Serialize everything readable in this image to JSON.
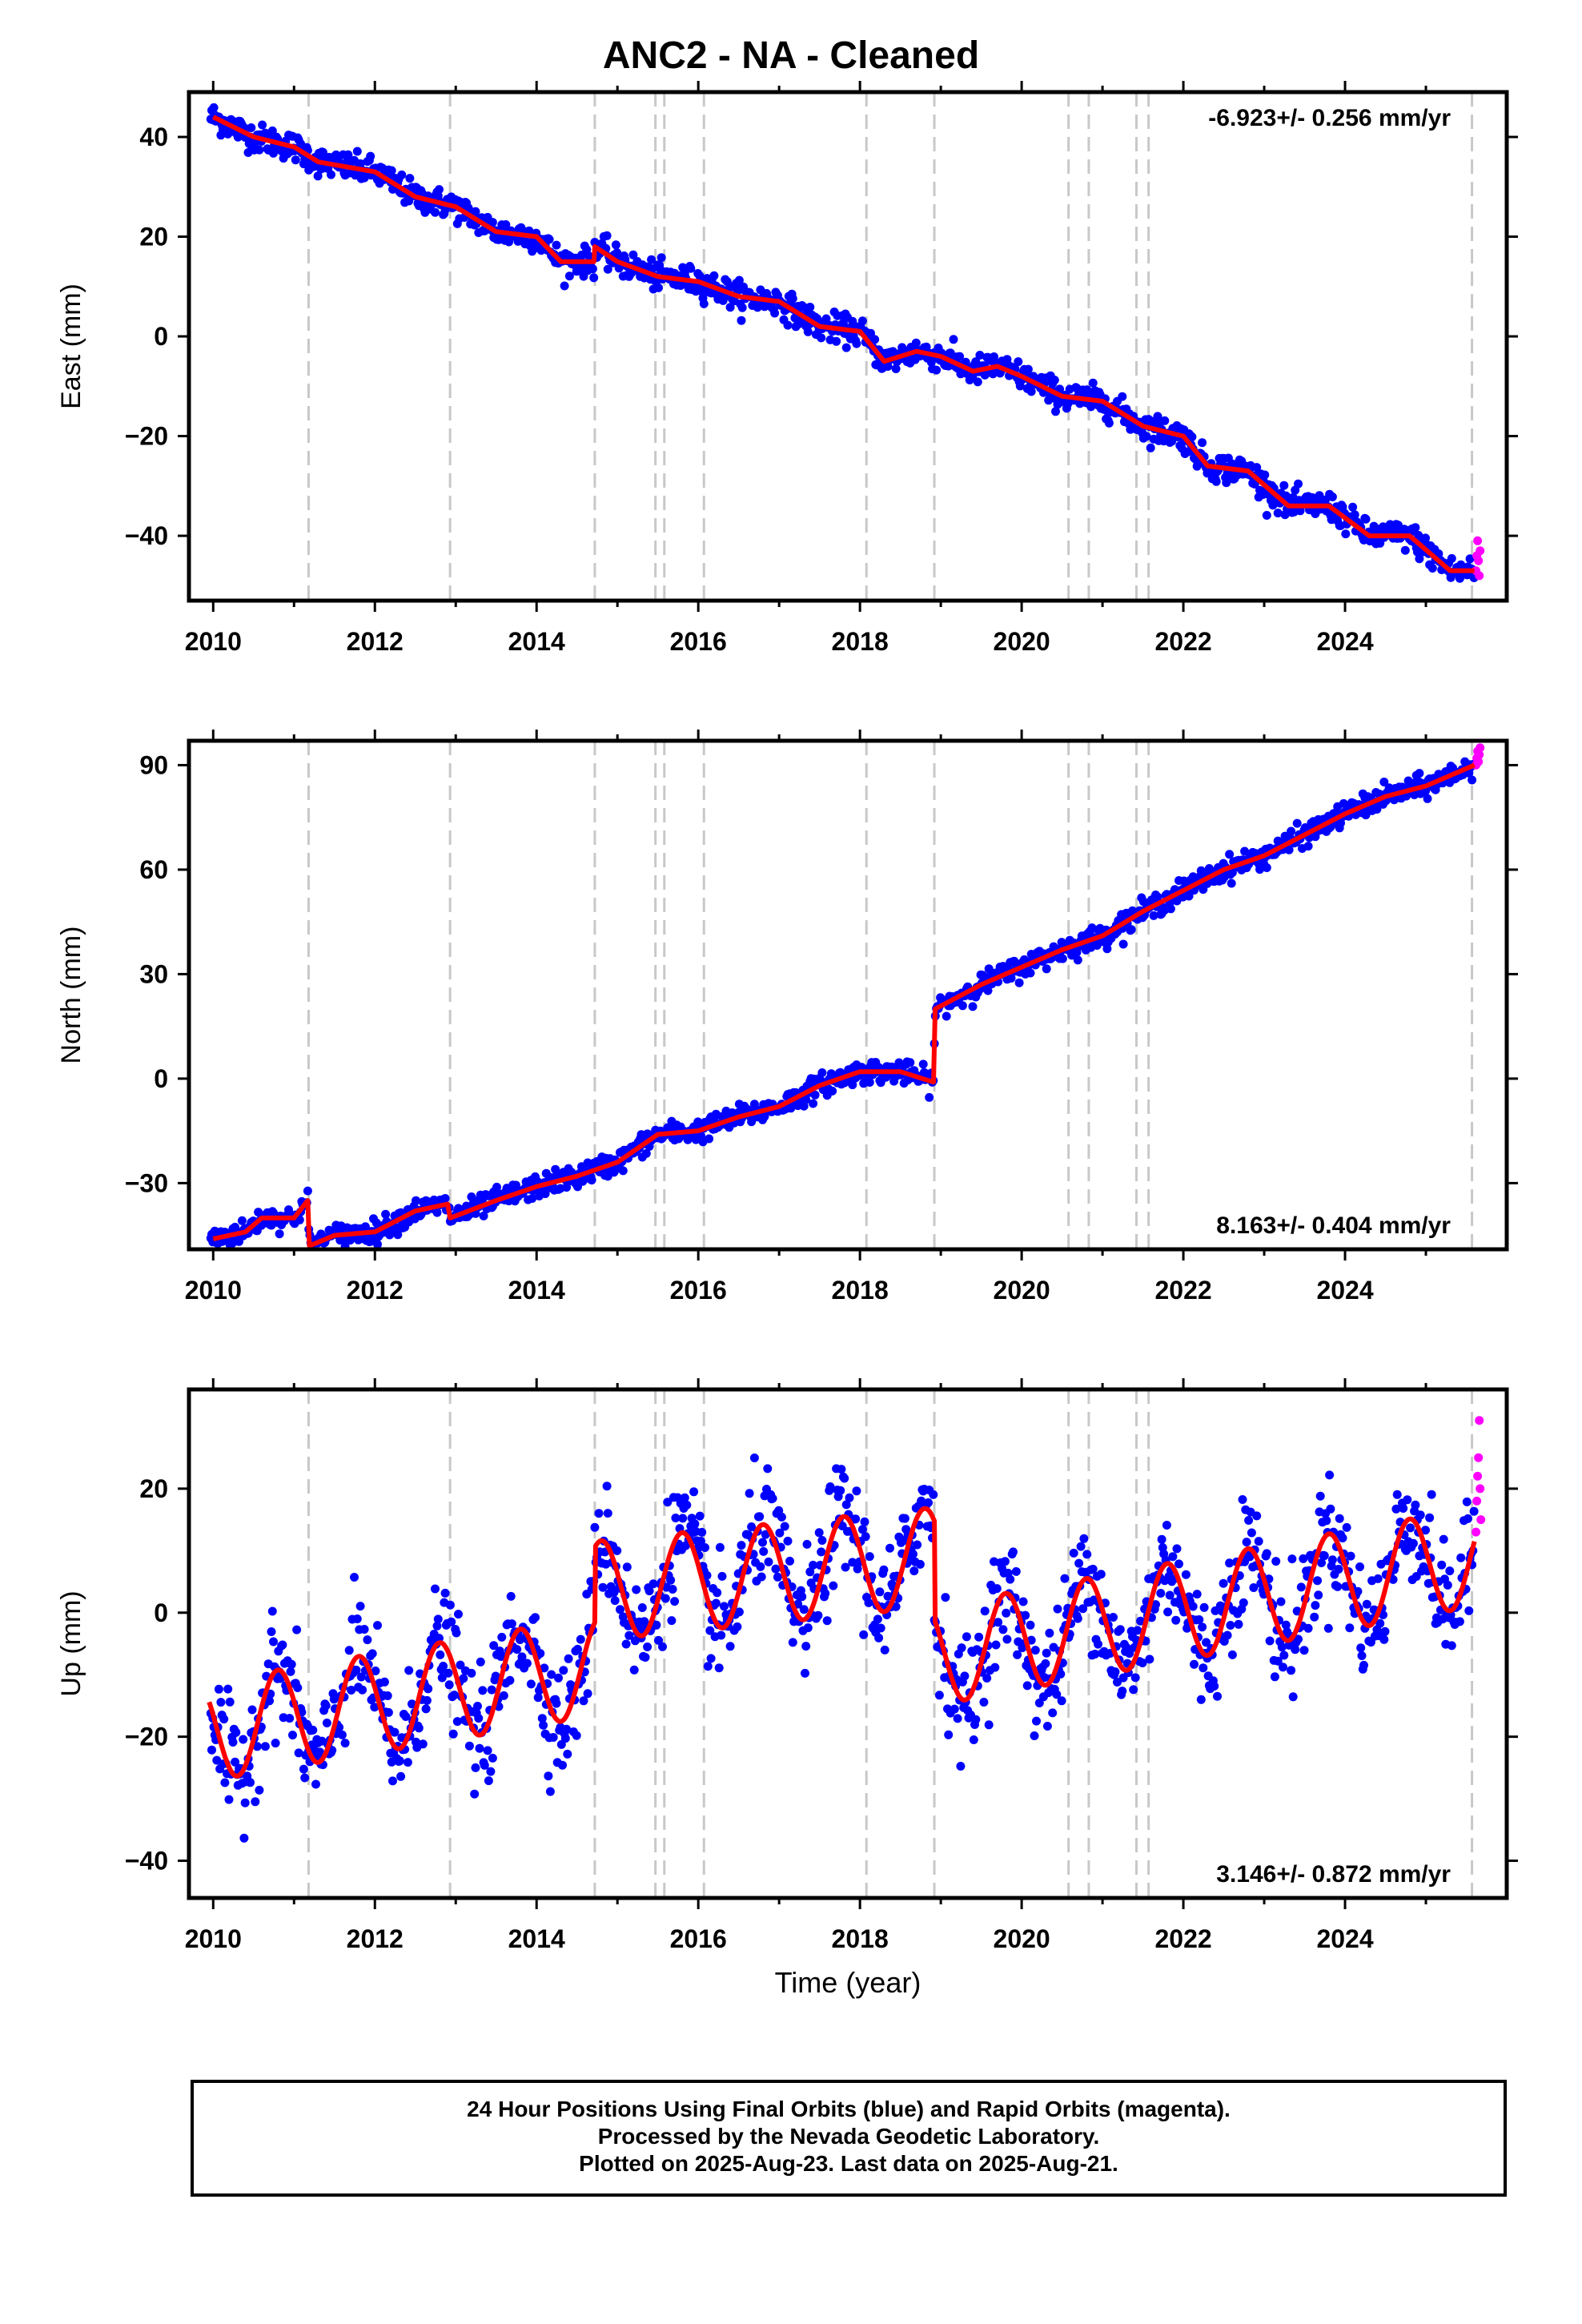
{
  "chart_data": {
    "title": "ANC2  - NA - Cleaned",
    "type": "scatter",
    "x_label": "Time (year)",
    "x_range": [
      2009.7,
      2026.0
    ],
    "x_ticks": [
      2010,
      2012,
      2014,
      2016,
      2018,
      2020,
      2022,
      2024
    ],
    "event_lines": [
      2011.18,
      2012.93,
      2014.72,
      2015.47,
      2015.58,
      2016.07,
      2018.08,
      2018.92,
      2020.58,
      2020.83,
      2021.42,
      2021.57,
      2025.57
    ],
    "series_colors": {
      "final_orbits": "#0000ff",
      "rapid_orbits": "#ff00ff",
      "model": "#ff0000",
      "event_lines": "#c8c8c8"
    },
    "panels": [
      {
        "ylabel": "East (mm)",
        "yrange": [
          -53,
          49
        ],
        "yticks": [
          40,
          20,
          0,
          -20,
          -40
        ],
        "rate_label": "-6.923+/- 0.256 mm/yr",
        "rate_position": "top-right",
        "model_points": [
          [
            2010.0,
            44
          ],
          [
            2010.5,
            40
          ],
          [
            2011.0,
            38
          ],
          [
            2011.3,
            35
          ],
          [
            2012.0,
            33
          ],
          [
            2012.5,
            28
          ],
          [
            2013.0,
            26
          ],
          [
            2013.5,
            21
          ],
          [
            2014.0,
            20
          ],
          [
            2014.3,
            15
          ],
          [
            2014.71,
            15
          ],
          [
            2014.72,
            18
          ],
          [
            2015.0,
            15
          ],
          [
            2015.5,
            12
          ],
          [
            2016.0,
            11
          ],
          [
            2016.5,
            8
          ],
          [
            2017.0,
            7
          ],
          [
            2017.5,
            2
          ],
          [
            2018.0,
            1
          ],
          [
            2018.3,
            -5
          ],
          [
            2018.7,
            -3
          ],
          [
            2019.0,
            -4
          ],
          [
            2019.4,
            -7
          ],
          [
            2019.7,
            -6
          ],
          [
            2020.0,
            -8
          ],
          [
            2020.5,
            -12
          ],
          [
            2021.0,
            -13
          ],
          [
            2021.5,
            -18
          ],
          [
            2022.0,
            -20
          ],
          [
            2022.3,
            -26
          ],
          [
            2022.8,
            -27
          ],
          [
            2023.3,
            -34
          ],
          [
            2023.8,
            -34
          ],
          [
            2024.3,
            -40
          ],
          [
            2024.8,
            -40
          ],
          [
            2025.3,
            -47
          ],
          [
            2025.6,
            -47
          ]
        ],
        "rapid_points": [
          [
            2025.62,
            -47
          ],
          [
            2025.63,
            -44
          ],
          [
            2025.64,
            -41
          ],
          [
            2025.65,
            -45
          ],
          [
            2025.66,
            -48
          ],
          [
            2025.67,
            -43
          ]
        ]
      },
      {
        "ylabel": "North (mm)",
        "yrange": [
          -49,
          97
        ],
        "yticks": [
          90,
          60,
          30,
          0,
          -30
        ],
        "rate_label": "8.163+/- 0.404 mm/yr",
        "rate_position": "bottom-right",
        "model_points": [
          [
            2010.0,
            -46
          ],
          [
            2010.4,
            -44
          ],
          [
            2010.6,
            -40
          ],
          [
            2011.0,
            -40
          ],
          [
            2011.17,
            -35
          ],
          [
            2011.19,
            -48
          ],
          [
            2011.5,
            -45
          ],
          [
            2012.0,
            -44
          ],
          [
            2012.5,
            -38
          ],
          [
            2012.9,
            -36
          ],
          [
            2012.93,
            -40
          ],
          [
            2013.5,
            -35
          ],
          [
            2014.0,
            -31
          ],
          [
            2014.5,
            -28
          ],
          [
            2015.0,
            -24
          ],
          [
            2015.5,
            -16
          ],
          [
            2016.0,
            -15
          ],
          [
            2016.5,
            -11
          ],
          [
            2017.0,
            -8
          ],
          [
            2017.5,
            -2
          ],
          [
            2018.0,
            2
          ],
          [
            2018.5,
            2
          ],
          [
            2018.91,
            -1
          ],
          [
            2018.93,
            20
          ],
          [
            2019.5,
            27
          ],
          [
            2020.0,
            32
          ],
          [
            2020.5,
            37
          ],
          [
            2021.0,
            41
          ],
          [
            2021.5,
            48
          ],
          [
            2022.0,
            54
          ],
          [
            2022.5,
            60
          ],
          [
            2023.0,
            64
          ],
          [
            2023.5,
            70
          ],
          [
            2024.0,
            76
          ],
          [
            2024.5,
            81
          ],
          [
            2025.0,
            84
          ],
          [
            2025.6,
            90
          ]
        ],
        "rapid_points": [
          [
            2025.62,
            90
          ],
          [
            2025.63,
            92
          ],
          [
            2025.64,
            94
          ],
          [
            2025.65,
            91
          ],
          [
            2025.66,
            93
          ],
          [
            2025.67,
            95
          ]
        ]
      },
      {
        "ylabel": "Up (mm)",
        "yrange": [
          -46,
          36
        ],
        "yticks": [
          20,
          0,
          -20,
          -40
        ],
        "rate_label": "3.146+/- 0.872 mm/yr",
        "rate_position": "bottom-right",
        "rapid_points": [
          [
            2025.62,
            13
          ],
          [
            2025.63,
            18
          ],
          [
            2025.64,
            22
          ],
          [
            2025.65,
            25
          ],
          [
            2025.66,
            31
          ],
          [
            2025.67,
            20
          ],
          [
            2025.68,
            15
          ]
        ]
      }
    ]
  },
  "footer": {
    "line1": "24 Hour Positions Using Final Orbits (blue) and Rapid Orbits (magenta).",
    "line2": "Processed by the Nevada Geodetic Laboratory.",
    "line3": "Plotted on 2025-Aug-23. Last data on 2025-Aug-21."
  }
}
